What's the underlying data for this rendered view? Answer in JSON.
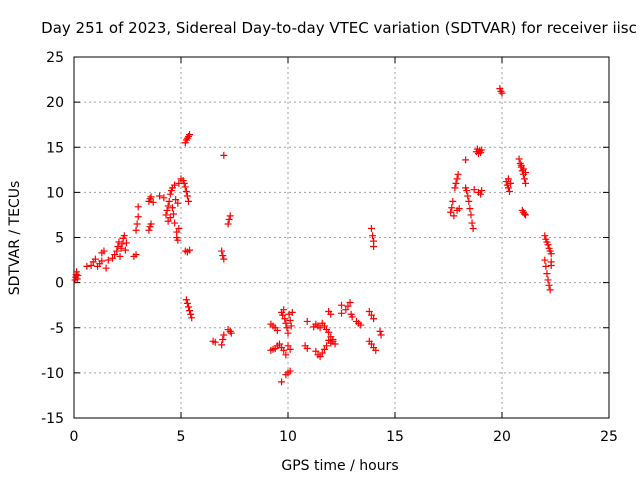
{
  "chart_data": {
    "type": "scatter",
    "title": "Day 251 of 2023, Sidereal Day-to-day VTEC variation (SDTVAR) for receiver iisc",
    "xlabel": "GPS time / hours",
    "ylabel": "SDTVAR / TECUs",
    "xlim": [
      0,
      25
    ],
    "ylim": [
      -15,
      25
    ],
    "xticks": [
      0,
      5,
      10,
      15,
      20,
      25
    ],
    "yticks": [
      -15,
      -10,
      -5,
      0,
      5,
      10,
      15,
      20,
      25
    ],
    "grid": true,
    "marker": "+",
    "color": "#ff0000",
    "series": [
      {
        "name": "SDTVAR",
        "points": [
          [
            0.05,
            0.3
          ],
          [
            0.08,
            0.6
          ],
          [
            0.1,
            0.9
          ],
          [
            0.12,
            1.2
          ],
          [
            0.15,
            0.4
          ],
          [
            0.18,
            0.8
          ],
          [
            0.6,
            1.8
          ],
          [
            0.8,
            1.9
          ],
          [
            0.9,
            2.3
          ],
          [
            1.0,
            2.6
          ],
          [
            1.1,
            1.8
          ],
          [
            1.2,
            2.1
          ],
          [
            1.3,
            2.4
          ],
          [
            1.3,
            3.3
          ],
          [
            1.4,
            3.5
          ],
          [
            1.5,
            1.6
          ],
          [
            1.6,
            2.5
          ],
          [
            1.8,
            2.7
          ],
          [
            1.9,
            3.1
          ],
          [
            2.0,
            3.5
          ],
          [
            2.05,
            4.0
          ],
          [
            2.1,
            4.5
          ],
          [
            2.15,
            2.9
          ],
          [
            2.2,
            3.8
          ],
          [
            2.25,
            4.3
          ],
          [
            2.3,
            4.9
          ],
          [
            2.35,
            5.2
          ],
          [
            2.4,
            3.6
          ],
          [
            2.45,
            4.4
          ],
          [
            2.8,
            2.9
          ],
          [
            2.9,
            3.1
          ],
          [
            2.9,
            5.8
          ],
          [
            2.95,
            6.5
          ],
          [
            3.0,
            7.3
          ],
          [
            3.0,
            8.4
          ],
          [
            3.5,
            5.8
          ],
          [
            3.55,
            6.2
          ],
          [
            3.6,
            6.5
          ],
          [
            3.5,
            9.0
          ],
          [
            3.55,
            9.3
          ],
          [
            3.6,
            9.5
          ],
          [
            3.7,
            8.9
          ],
          [
            4.0,
            9.6
          ],
          [
            4.2,
            9.4
          ],
          [
            4.3,
            7.5
          ],
          [
            4.35,
            8.0
          ],
          [
            4.4,
            8.5
          ],
          [
            4.4,
            6.8
          ],
          [
            4.45,
            9.0
          ],
          [
            4.5,
            7.2
          ],
          [
            4.5,
            9.8
          ],
          [
            4.55,
            10.2
          ],
          [
            4.6,
            8.3
          ],
          [
            4.6,
            10.5
          ],
          [
            4.65,
            7.6
          ],
          [
            4.7,
            10.8
          ],
          [
            4.7,
            6.6
          ],
          [
            4.75,
            9.2
          ],
          [
            4.8,
            5.6
          ],
          [
            4.8,
            5.0
          ],
          [
            4.85,
            4.7
          ],
          [
            4.9,
            6.0
          ],
          [
            4.9,
            11.0
          ],
          [
            4.85,
            8.8
          ],
          [
            5.0,
            11.5
          ],
          [
            5.1,
            11.3
          ],
          [
            5.15,
            11.0
          ],
          [
            5.2,
            10.6
          ],
          [
            5.25,
            10.1
          ],
          [
            5.3,
            9.6
          ],
          [
            5.35,
            9.0
          ],
          [
            5.2,
            15.5
          ],
          [
            5.25,
            15.8
          ],
          [
            5.3,
            16.0
          ],
          [
            5.35,
            16.2
          ],
          [
            5.4,
            16.4
          ],
          [
            5.2,
            3.5
          ],
          [
            5.3,
            3.4
          ],
          [
            5.4,
            3.6
          ],
          [
            5.25,
            -1.9
          ],
          [
            5.3,
            -2.3
          ],
          [
            5.35,
            -2.7
          ],
          [
            5.4,
            -3.1
          ],
          [
            5.45,
            -3.5
          ],
          [
            5.5,
            -3.9
          ],
          [
            6.5,
            -6.5
          ],
          [
            6.6,
            -6.6
          ],
          [
            6.9,
            -6.9
          ],
          [
            6.95,
            -6.3
          ],
          [
            7.0,
            -5.8
          ],
          [
            6.9,
            3.5
          ],
          [
            6.95,
            3.0
          ],
          [
            7.0,
            2.6
          ],
          [
            7.0,
            14.1
          ],
          [
            7.2,
            6.5
          ],
          [
            7.25,
            7.0
          ],
          [
            7.3,
            7.4
          ],
          [
            7.2,
            -5.2
          ],
          [
            7.3,
            -5.4
          ],
          [
            7.35,
            -5.6
          ],
          [
            9.2,
            -4.6
          ],
          [
            9.3,
            -4.8
          ],
          [
            9.4,
            -5.0
          ],
          [
            9.5,
            -5.3
          ],
          [
            9.2,
            -7.5
          ],
          [
            9.3,
            -7.4
          ],
          [
            9.4,
            -7.3
          ],
          [
            9.5,
            -7.0
          ],
          [
            9.6,
            -6.8
          ],
          [
            9.7,
            -3.3
          ],
          [
            9.75,
            -3.6
          ],
          [
            9.8,
            -3.0
          ],
          [
            9.85,
            -4.0
          ],
          [
            9.9,
            -4.5
          ],
          [
            9.95,
            -5.0
          ],
          [
            10.0,
            -5.6
          ],
          [
            10.05,
            -3.5
          ],
          [
            10.1,
            -4.2
          ],
          [
            10.15,
            -4.8
          ],
          [
            10.2,
            -3.3
          ],
          [
            9.7,
            -7.2
          ],
          [
            9.8,
            -7.5
          ],
          [
            9.9,
            -8.0
          ],
          [
            10.0,
            -7.0
          ],
          [
            10.1,
            -7.4
          ],
          [
            9.7,
            -11.0
          ],
          [
            9.9,
            -10.2
          ],
          [
            10.0,
            -10.0
          ],
          [
            10.1,
            -9.8
          ],
          [
            10.8,
            -7.0
          ],
          [
            10.9,
            -7.3
          ],
          [
            10.9,
            -4.3
          ],
          [
            11.2,
            -4.9
          ],
          [
            11.3,
            -4.6
          ],
          [
            11.4,
            -4.8
          ],
          [
            11.5,
            -5.0
          ],
          [
            11.6,
            -4.5
          ],
          [
            11.7,
            -4.8
          ],
          [
            11.8,
            -5.2
          ],
          [
            11.9,
            -5.5
          ],
          [
            12.0,
            -6.0
          ],
          [
            12.1,
            -6.3
          ],
          [
            11.3,
            -7.6
          ],
          [
            11.4,
            -8.0
          ],
          [
            11.5,
            -8.2
          ],
          [
            11.6,
            -7.8
          ],
          [
            11.7,
            -7.4
          ],
          [
            11.8,
            -7.0
          ],
          [
            11.9,
            -6.4
          ],
          [
            12.0,
            -6.7
          ],
          [
            12.1,
            -6.5
          ],
          [
            12.2,
            -6.8
          ],
          [
            11.9,
            -3.2
          ],
          [
            12.0,
            -3.5
          ],
          [
            12.5,
            -2.5
          ],
          [
            12.5,
            -3.4
          ],
          [
            12.7,
            -3.0
          ],
          [
            12.8,
            -2.6
          ],
          [
            12.9,
            -2.2
          ],
          [
            12.95,
            -3.5
          ],
          [
            13.0,
            -3.8
          ],
          [
            13.2,
            -4.3
          ],
          [
            13.3,
            -4.5
          ],
          [
            13.4,
            -4.7
          ],
          [
            13.8,
            -3.2
          ],
          [
            13.9,
            -3.6
          ],
          [
            14.0,
            -4.0
          ],
          [
            13.8,
            -6.5
          ],
          [
            13.9,
            -6.8
          ],
          [
            14.0,
            -7.2
          ],
          [
            14.1,
            -7.5
          ],
          [
            13.9,
            6.0
          ],
          [
            13.95,
            5.2
          ],
          [
            14.0,
            4.6
          ],
          [
            14.0,
            4.0
          ],
          [
            14.3,
            -5.4
          ],
          [
            14.35,
            -5.8
          ],
          [
            17.6,
            7.8
          ],
          [
            17.65,
            8.3
          ],
          [
            17.7,
            9.0
          ],
          [
            17.75,
            7.4
          ],
          [
            17.8,
            10.5
          ],
          [
            17.85,
            11.0
          ],
          [
            17.9,
            11.5
          ],
          [
            17.95,
            12.0
          ],
          [
            17.9,
            8.0
          ],
          [
            18.0,
            8.2
          ],
          [
            18.3,
            13.6
          ],
          [
            18.3,
            10.5
          ],
          [
            18.35,
            10.2
          ],
          [
            18.4,
            9.6
          ],
          [
            18.45,
            9.0
          ],
          [
            18.5,
            8.2
          ],
          [
            18.55,
            7.5
          ],
          [
            18.6,
            6.6
          ],
          [
            18.65,
            6.0
          ],
          [
            18.7,
            10.3
          ],
          [
            18.8,
            14.5
          ],
          [
            18.85,
            14.8
          ],
          [
            18.9,
            14.3
          ],
          [
            18.95,
            14.6
          ],
          [
            19.0,
            14.4
          ],
          [
            19.05,
            14.7
          ],
          [
            18.9,
            10.0
          ],
          [
            19.0,
            9.8
          ],
          [
            19.05,
            10.2
          ],
          [
            19.9,
            21.5
          ],
          [
            19.95,
            21.2
          ],
          [
            20.0,
            21.0
          ],
          [
            20.2,
            11.2
          ],
          [
            20.25,
            10.8
          ],
          [
            20.3,
            10.5
          ],
          [
            20.35,
            10.1
          ],
          [
            20.3,
            11.5
          ],
          [
            20.4,
            11.0
          ],
          [
            20.8,
            13.7
          ],
          [
            20.85,
            13.2
          ],
          [
            20.9,
            12.8
          ],
          [
            20.95,
            12.4
          ],
          [
            21.0,
            12.0
          ],
          [
            21.05,
            11.5
          ],
          [
            21.1,
            11.0
          ],
          [
            20.9,
            13.0
          ],
          [
            21.0,
            12.6
          ],
          [
            21.1,
            12.2
          ],
          [
            20.95,
            8.0
          ],
          [
            21.0,
            7.8
          ],
          [
            21.05,
            7.6
          ],
          [
            21.1,
            7.5
          ],
          [
            22.0,
            5.2
          ],
          [
            22.05,
            4.8
          ],
          [
            22.1,
            4.5
          ],
          [
            22.15,
            4.2
          ],
          [
            22.2,
            3.8
          ],
          [
            22.25,
            3.5
          ],
          [
            22.3,
            3.2
          ],
          [
            22.0,
            2.5
          ],
          [
            22.05,
            1.8
          ],
          [
            22.1,
            1.0
          ],
          [
            22.15,
            0.3
          ],
          [
            22.2,
            -0.3
          ],
          [
            22.25,
            -0.8
          ],
          [
            22.3,
            1.9
          ],
          [
            22.3,
            2.3
          ]
        ]
      }
    ]
  }
}
